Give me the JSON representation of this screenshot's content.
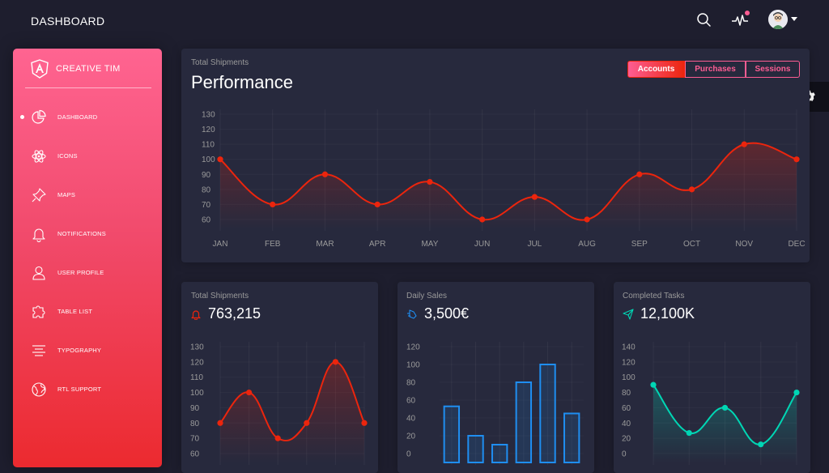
{
  "navbar": {
    "brand": "DASHBOARD",
    "icons": [
      "search-icon",
      "activity-icon",
      "avatar",
      "chevron-down-icon"
    ]
  },
  "sidebar": {
    "title": "CREATIVE TIM",
    "logo_icon": "angular-logo-icon",
    "items": [
      {
        "label": "DASHBOARD",
        "icon": "chart-pie-icon",
        "active": true
      },
      {
        "label": "ICONS",
        "icon": "atom-icon"
      },
      {
        "label": "MAPS",
        "icon": "pin-icon"
      },
      {
        "label": "NOTIFICATIONS",
        "icon": "bell-icon"
      },
      {
        "label": "USER PROFILE",
        "icon": "single-user-icon"
      },
      {
        "label": "TABLE LIST",
        "icon": "puzzle-icon"
      },
      {
        "label": "TYPOGRAPHY",
        "icon": "align-center-icon"
      },
      {
        "label": "RTL SUPPORT",
        "icon": "world-icon"
      }
    ]
  },
  "settings_icon": "gear-icon",
  "main_card": {
    "category": "Total Shipments",
    "title": "Performance",
    "buttons": [
      "Accounts",
      "Purchases",
      "Sessions"
    ],
    "active_button": "Accounts"
  },
  "cards": [
    {
      "category": "Total Shipments",
      "value": "763,215",
      "icon": "bell-icon",
      "accent": "#ec250d"
    },
    {
      "category": "Daily Sales",
      "value": "3,500€",
      "icon": "delivery-fast-icon",
      "accent": "#1f8ef1"
    },
    {
      "category": "Completed Tasks",
      "value": "12,100K",
      "icon": "send-icon",
      "accent": "#00d6b4"
    }
  ],
  "colors": {
    "background": "#1e1e2e",
    "card": "#27293d",
    "primary": "#fd5d93",
    "danger": "#ec250d",
    "info": "#1f8ef1",
    "success": "#00d6b4"
  },
  "chart_data": [
    {
      "type": "line",
      "categories": [
        "JAN",
        "FEB",
        "MAR",
        "APR",
        "MAY",
        "JUN",
        "JUL",
        "AUG",
        "SEP",
        "OCT",
        "NOV",
        "DEC"
      ],
      "values": [
        100,
        70,
        90,
        70,
        85,
        60,
        75,
        60,
        90,
        80,
        110,
        100
      ],
      "yticks": [
        60,
        70,
        80,
        90,
        100,
        110,
        120,
        130
      ],
      "ylim": [
        60,
        130
      ],
      "color": "#ec250d",
      "grid": true
    },
    {
      "type": "line",
      "values": [
        80,
        100,
        70,
        80,
        120,
        80
      ],
      "yticks": [
        60,
        70,
        80,
        90,
        100,
        110,
        120,
        130
      ],
      "ylim": [
        60,
        130
      ],
      "color": "#ec250d",
      "grid": true
    },
    {
      "type": "bar",
      "values": [
        53,
        20,
        10,
        80,
        100,
        45
      ],
      "yticks": [
        0,
        20,
        40,
        60,
        80,
        100,
        120
      ],
      "ylim": [
        0,
        120
      ],
      "color": "#1f8ef1",
      "grid": true
    },
    {
      "type": "line",
      "values": [
        90,
        27,
        60,
        12,
        80
      ],
      "yticks": [
        0,
        20,
        40,
        60,
        80,
        100,
        120,
        140
      ],
      "ylim": [
        0,
        140
      ],
      "color": "#00d6b4",
      "grid": true
    }
  ]
}
